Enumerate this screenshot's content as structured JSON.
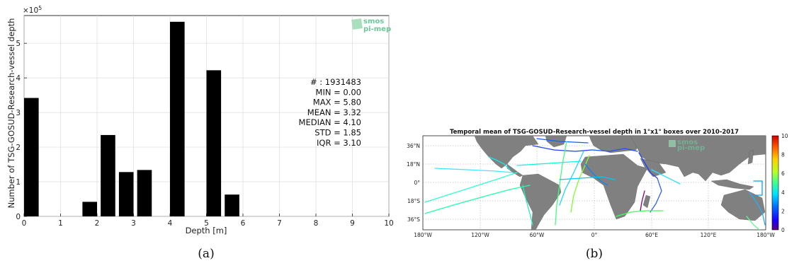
{
  "chart_data": [
    {
      "type": "bar",
      "panel": "(a)",
      "xlabel": "Depth [m]",
      "ylabel": "Number of TSG-GOSUD-Research-vessel depth",
      "y_exponent_label": "×10",
      "y_exponent_power": "5",
      "xlim": [
        0,
        10
      ],
      "ylim": [
        0,
        5.8
      ],
      "x_ticks": [
        0,
        1,
        2,
        3,
        4,
        5,
        6,
        7,
        8,
        9,
        10
      ],
      "y_ticks": [
        0,
        1,
        2,
        3,
        4,
        5
      ],
      "grid": true,
      "bar_width": 0.4,
      "bars": [
        {
          "x": 0.2,
          "value": 3.42
        },
        {
          "x": 1.8,
          "value": 0.42
        },
        {
          "x": 2.3,
          "value": 2.35
        },
        {
          "x": 2.8,
          "value": 1.28
        },
        {
          "x": 3.3,
          "value": 1.34
        },
        {
          "x": 4.2,
          "value": 5.62
        },
        {
          "x": 5.2,
          "value": 4.22
        },
        {
          "x": 5.7,
          "value": 0.63
        }
      ],
      "stats": [
        "# : 1931483",
        "MIN = 0.00",
        "MAX =  5.80",
        "MEAN = 3.32",
        "MEDIAN = 4.10",
        "STD = 1.85",
        "IQR = 3.10"
      ],
      "logo": [
        "smos",
        "pi-mep"
      ],
      "bar_color": "#000000"
    },
    {
      "type": "heatmap",
      "panel": "(b)",
      "title": "Temporal mean of TSG-GOSUD-Research-vessel depth in 1°x1° boxes over 2010-2017",
      "x_ticks": [
        "180°W",
        "120°W",
        "60°W",
        "0°",
        "60°E",
        "120°E",
        "180°W"
      ],
      "y_ticks": [
        "36°N",
        "18°N",
        "0°",
        "18°S",
        "36°S"
      ],
      "colorbar_ticks": [
        0,
        2,
        4,
        6,
        8,
        10
      ],
      "colorbar_range": [
        0,
        10
      ],
      "colormap": "jet",
      "land_color": "#808080",
      "logo": [
        "smos",
        "pi-mep"
      ]
    }
  ],
  "captions": {
    "a": "(a)",
    "b": "(b)"
  }
}
